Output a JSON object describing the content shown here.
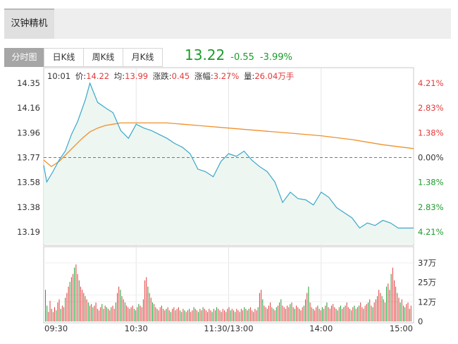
{
  "stock": {
    "name": "汉钟精机"
  },
  "tabs": [
    {
      "label": "分时图",
      "active": true
    },
    {
      "label": "日K线",
      "active": false
    },
    {
      "label": "周K线",
      "active": false
    },
    {
      "label": "月K线",
      "active": false
    }
  ],
  "quote": {
    "price": "13.22",
    "change": "-0.55",
    "change_pct": "-3.99%"
  },
  "info": {
    "time": "10:01",
    "price_label": "价:",
    "price": "14.22",
    "avg_label": "均:",
    "avg": "13.99",
    "change_label": "涨跌:",
    "change": "0.45",
    "amp_label": "涨幅:",
    "amp": "3.27%",
    "vol_label": "量:",
    "vol": "26.04万手"
  },
  "colors": {
    "up": "#e23b3b",
    "down": "#1f9b2c",
    "price_line": "#3aa7c8",
    "avg_line": "#f0902a",
    "fill": "#edf6f1"
  },
  "chart_data": {
    "type": "line",
    "prev_close": 13.77,
    "ylim": [
      13.19,
      14.35
    ],
    "y_ticks": [
      "14.35",
      "14.16",
      "13.96",
      "13.77",
      "13.58",
      "13.38",
      "13.19"
    ],
    "pct_ticks": [
      {
        "label": "4.21%",
        "dir": "up"
      },
      {
        "label": "2.83%",
        "dir": "up"
      },
      {
        "label": "1.38%",
        "dir": "up"
      },
      {
        "label": "0.00%",
        "dir": "flat"
      },
      {
        "label": "1.38%",
        "dir": "down"
      },
      {
        "label": "2.83%",
        "dir": "down"
      },
      {
        "label": "4.21%",
        "dir": "down"
      }
    ],
    "x_labels": [
      "09:30",
      "10:30",
      "11:30/13:00",
      "14:00",
      "15:00"
    ],
    "vol_ticks": [
      "37万",
      "25万",
      "12万",
      "0"
    ],
    "vol_max": 37,
    "series": [
      {
        "name": "price",
        "x": [
          0,
          2,
          6,
          10,
          14,
          18,
          22,
          27,
          30,
          35,
          41,
          45,
          50,
          55,
          60,
          65,
          70,
          75,
          80,
          85,
          90,
          95,
          100,
          105,
          110,
          115,
          120,
          125,
          130,
          135,
          140,
          145,
          150,
          155,
          160,
          165,
          170,
          175,
          180,
          185,
          190,
          195,
          200,
          205,
          210,
          215,
          220,
          225,
          230,
          235,
          240
        ],
        "y": [
          13.71,
          13.58,
          13.66,
          13.75,
          13.82,
          13.95,
          14.05,
          14.22,
          14.35,
          14.2,
          14.15,
          14.12,
          13.98,
          13.92,
          14.03,
          14.0,
          13.98,
          13.95,
          13.92,
          13.88,
          13.85,
          13.8,
          13.68,
          13.66,
          13.62,
          13.74,
          13.8,
          13.78,
          13.82,
          13.75,
          13.7,
          13.66,
          13.58,
          13.42,
          13.5,
          13.45,
          13.44,
          13.4,
          13.5,
          13.46,
          13.38,
          13.34,
          13.3,
          13.22,
          13.26,
          13.24,
          13.28,
          13.26,
          13.22,
          13.22,
          13.22
        ]
      },
      {
        "name": "avg",
        "x": [
          0,
          5,
          10,
          15,
          20,
          25,
          30,
          35,
          40,
          45,
          50,
          60,
          70,
          80,
          90,
          100,
          120,
          140,
          160,
          180,
          200,
          220,
          240
        ],
        "y": [
          13.75,
          13.7,
          13.74,
          13.8,
          13.86,
          13.92,
          13.97,
          14.0,
          14.02,
          14.03,
          14.04,
          14.04,
          14.04,
          14.04,
          14.03,
          14.02,
          14.0,
          13.98,
          13.96,
          13.94,
          13.91,
          13.87,
          13.84
        ]
      }
    ],
    "volume": [
      20,
      10,
      6,
      13,
      8,
      6,
      9,
      7,
      12,
      14,
      8,
      10,
      9,
      15,
      18,
      22,
      25,
      28,
      30,
      34,
      36,
      30,
      26,
      22,
      20,
      18,
      16,
      14,
      12,
      10,
      11,
      9,
      10,
      12,
      8,
      7,
      9,
      11,
      8,
      10,
      9,
      8,
      7,
      9,
      10,
      8,
      12,
      18,
      22,
      20,
      16,
      14,
      12,
      10,
      9,
      8,
      9,
      10,
      8,
      7,
      9,
      11,
      10,
      9,
      14,
      26,
      28,
      22,
      18,
      15,
      12,
      11,
      9,
      8,
      7,
      9,
      10,
      8,
      7,
      8,
      9,
      7,
      6,
      8,
      9,
      7,
      8,
      9,
      7,
      6,
      8,
      7,
      6,
      7,
      8,
      6,
      7,
      9,
      8,
      7,
      6,
      8,
      7,
      9,
      8,
      7,
      6,
      8,
      7,
      6,
      8,
      7,
      9,
      8,
      7,
      6,
      8,
      7,
      6,
      8,
      9,
      7,
      8,
      7,
      6,
      8,
      7,
      6,
      8,
      7,
      9,
      8,
      7,
      8,
      9,
      7,
      6,
      8,
      7,
      9,
      18,
      20,
      14,
      10,
      9,
      8,
      10,
      12,
      9,
      8,
      7,
      9,
      10,
      12,
      14,
      10,
      9,
      8,
      10,
      9,
      11,
      12,
      9,
      8,
      10,
      9,
      8,
      7,
      9,
      10,
      14,
      18,
      22,
      12,
      9,
      8,
      7,
      9,
      10,
      8,
      7,
      9,
      8,
      10,
      12,
      9,
      8,
      10,
      11,
      9,
      8,
      7,
      9,
      10,
      8,
      9,
      10,
      12,
      9,
      8,
      7,
      9,
      10,
      8,
      9,
      10,
      12,
      9,
      8,
      10,
      11,
      12,
      14,
      10,
      9,
      12,
      14,
      16,
      20,
      18,
      16,
      14,
      12,
      22,
      24,
      20,
      30,
      34,
      26,
      22,
      18,
      15,
      12,
      14,
      10,
      9,
      11,
      12,
      8,
      10
    ]
  }
}
